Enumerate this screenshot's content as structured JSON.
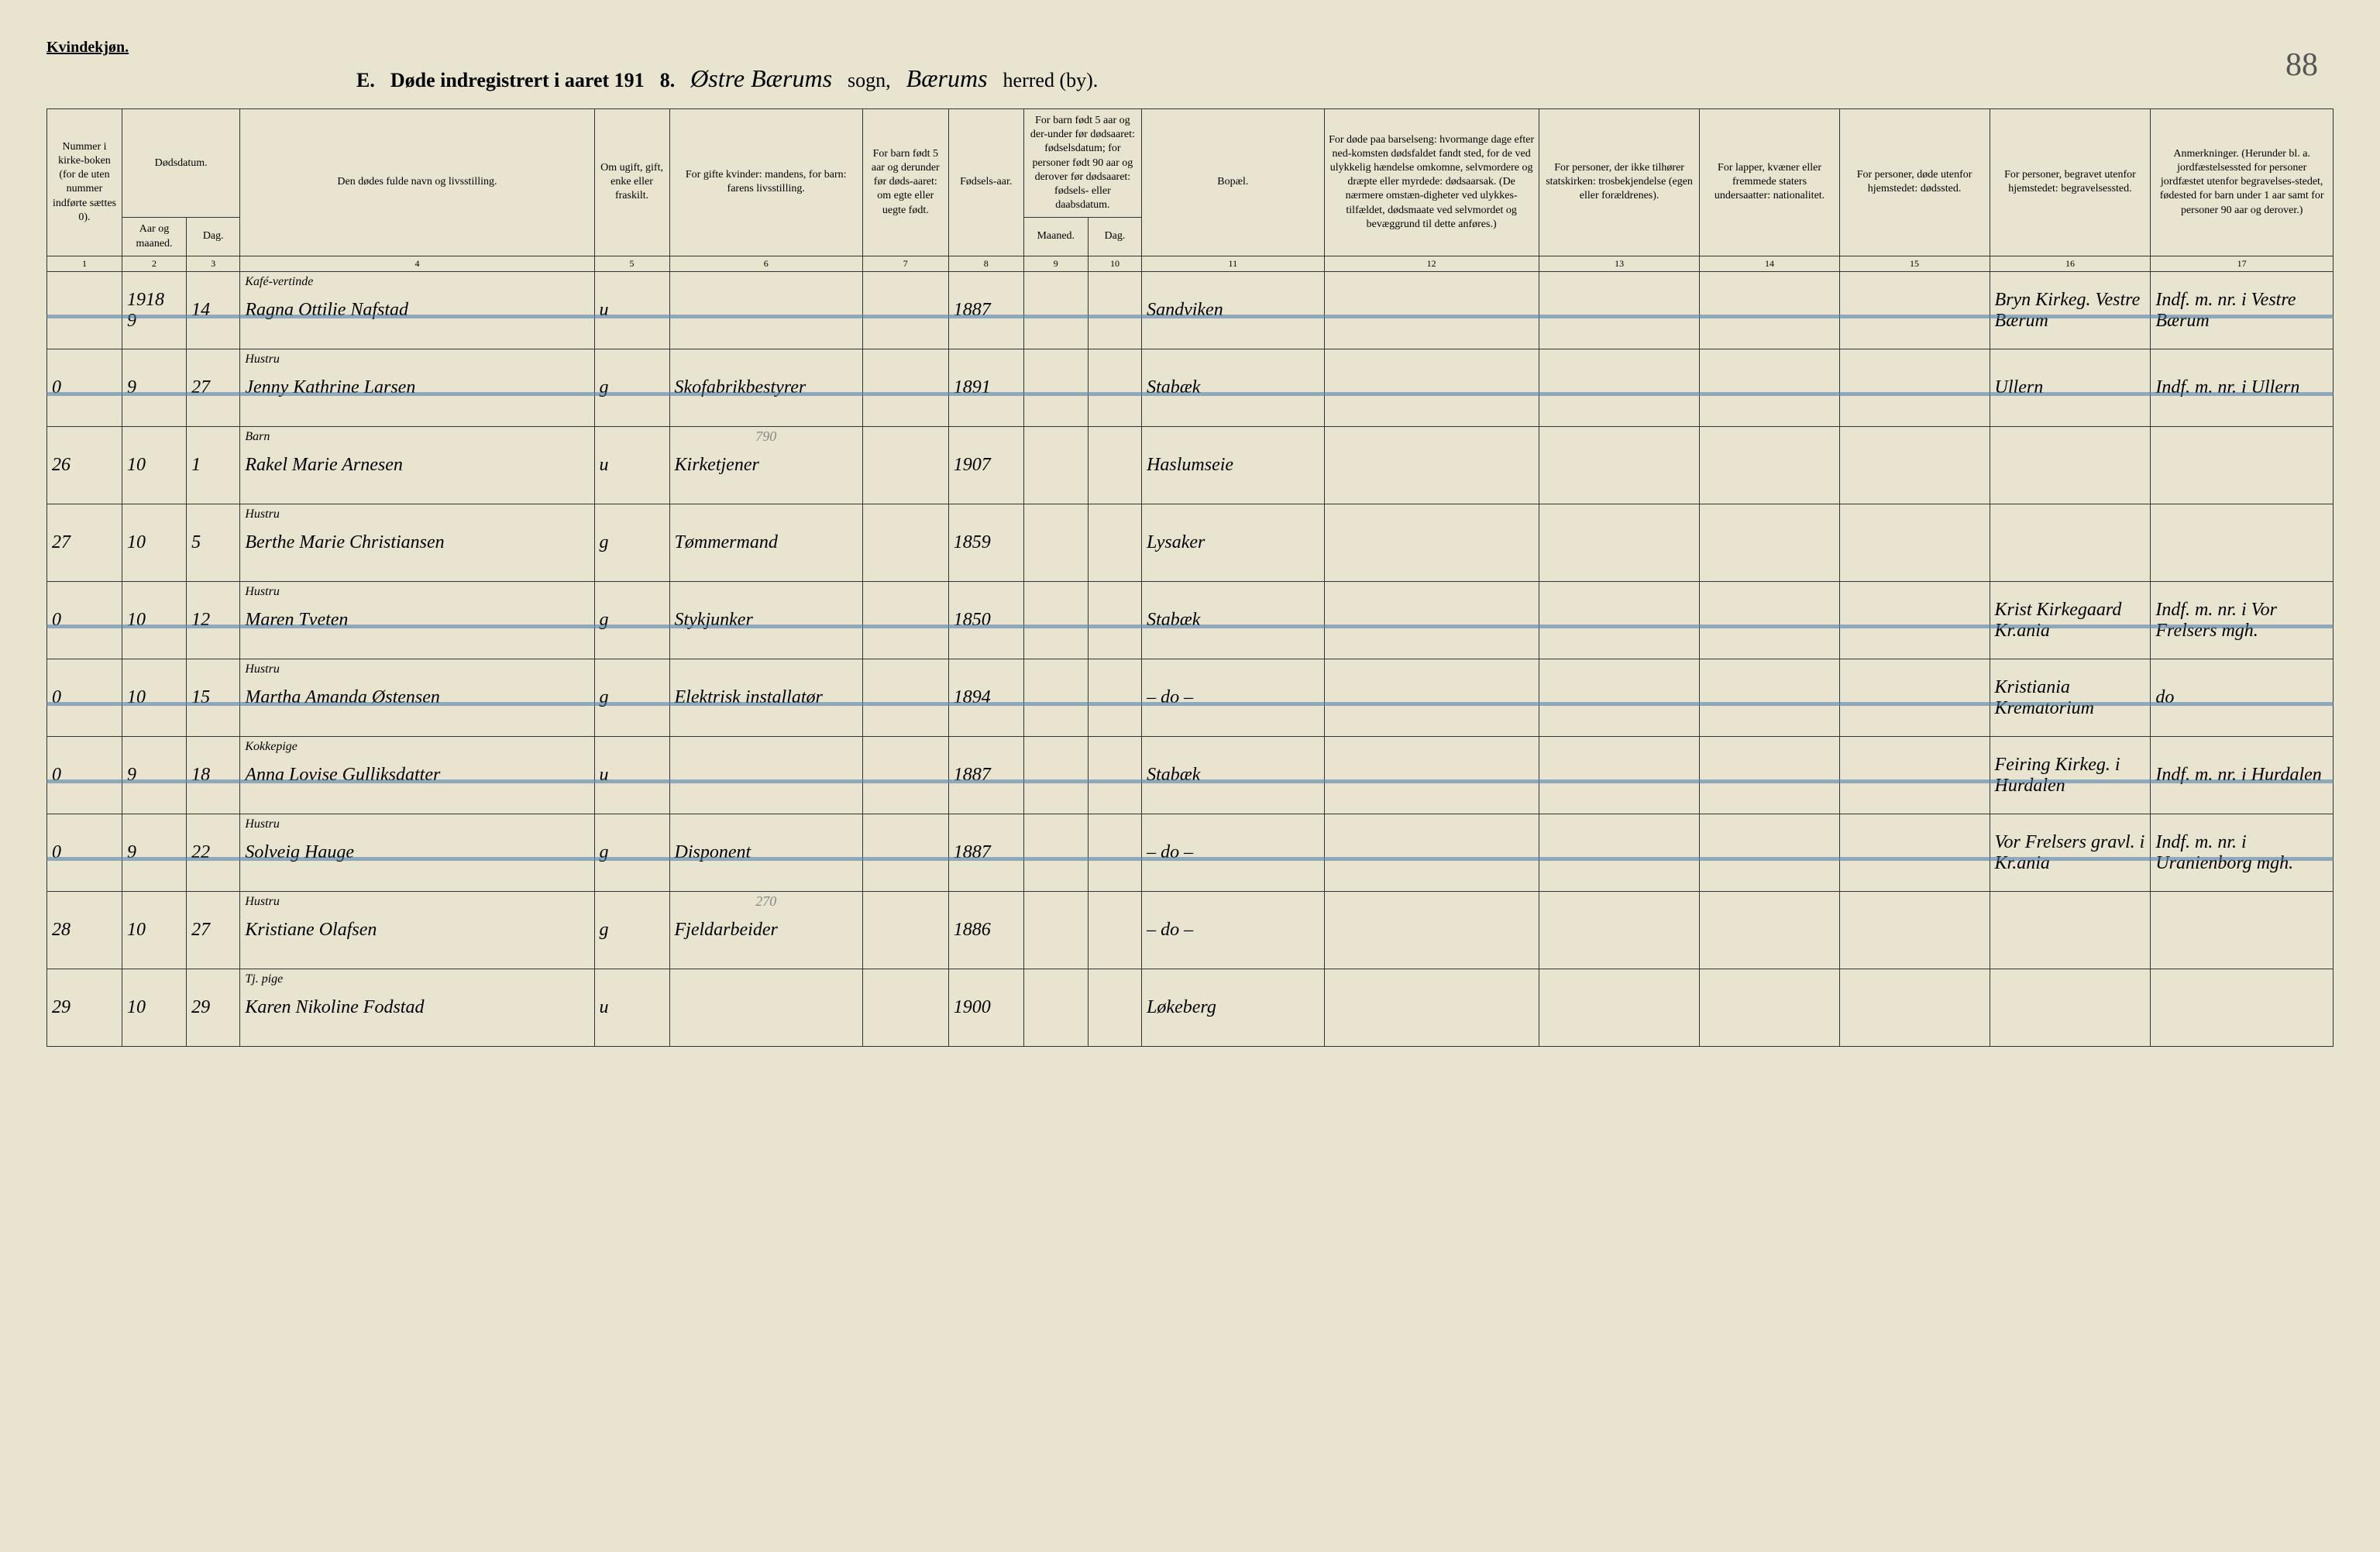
{
  "meta": {
    "genderLabel": "Kvindekjøn.",
    "sectionLetter": "E.",
    "titlePrefix": "Døde indregistrert i aaret 191",
    "yearSuffix": "8.",
    "parishScript": "Østre Bærums",
    "sognLabel": "sogn,",
    "herredScript": "Bærums",
    "herredLabel": "herred (by).",
    "pageNumber": "88"
  },
  "headers": {
    "c1": "Nummer i kirke-boken (for de uten nummer indførte sættes 0).",
    "c23top": "Dødsdatum.",
    "c2": "Aar og maaned.",
    "c3": "Dag.",
    "c4": "Den dødes fulde navn og livsstilling.",
    "c5": "Om ugift, gift, enke eller fraskilt.",
    "c6": "For gifte kvinder: mandens, for barn: farens livsstilling.",
    "c7": "For barn født 5 aar og derunder før døds-aaret: om egte eller uegte født.",
    "c8": "Fødsels-aar.",
    "c910top": "For barn født 5 aar og der-under før dødsaaret: fødselsdatum; for personer født 90 aar og derover før dødsaaret: fødsels- eller daabsdatum.",
    "c9": "Maaned.",
    "c10": "Dag.",
    "c11": "Bopæl.",
    "c12": "For døde paa barselseng: hvormange dage efter ned-komsten dødsfaldet fandt sted, for de ved ulykkelig hændelse omkomne, selvmordere og dræpte eller myrdede: dødsaarsak. (De nærmere omstæn-digheter ved ulykkes-tilfældet, dødsmaate ved selvmordet og bevæggrund til dette anføres.)",
    "c13": "For personer, der ikke tilhører statskirken: trosbekjendelse (egen eller forældrenes).",
    "c14": "For lapper, kvæner eller fremmede staters undersaatter: nationalitet.",
    "c15": "For personer, døde utenfor hjemstedet: dødssted.",
    "c16": "For personer, begravet utenfor hjemstedet: begravelsessted.",
    "c17": "Anmerkninger. (Herunder bl. a. jordfæstelsessted for personer jordfæstet utenfor begravelses-stedet, fødested for barn under 1 aar samt for personer 90 aar og derover.)"
  },
  "colnums": [
    "1",
    "2",
    "3",
    "4",
    "5",
    "6",
    "7",
    "8",
    "9",
    "10",
    "11",
    "12",
    "13",
    "14",
    "15",
    "16",
    "17"
  ],
  "rows": [
    {
      "struck": true,
      "n": "",
      "aar": "1918\n9",
      "dag": "14",
      "navn_sup": "Kafé-vertinde",
      "navn": "Ragna Ottilie Nafstad",
      "stat": "u",
      "livs": "",
      "egte": "",
      "faar": "1887",
      "fm": "",
      "fd": "",
      "bopael": "Sandviken",
      "c12": "",
      "c13": "",
      "c14": "",
      "c15": "",
      "c16": "Bryn Kirkeg. Vestre Bærum",
      "c17": "Indf. m. nr. i Vestre Bærum"
    },
    {
      "struck": true,
      "n": "0",
      "aar": "9",
      "dag": "27",
      "navn_sup": "Hustru",
      "navn": "Jenny Kathrine Larsen",
      "stat": "g",
      "livs": "Skofabrikbestyrer",
      "egte": "",
      "faar": "1891",
      "fm": "",
      "fd": "",
      "bopael": "Stabæk",
      "c12": "",
      "c13": "",
      "c14": "",
      "c15": "",
      "c16": "Ullern",
      "c17": "Indf. m. nr. i Ullern"
    },
    {
      "struck": false,
      "n": "26",
      "aar": "10",
      "dag": "1",
      "navn_sup": "Barn",
      "navn": "Rakel Marie Arnesen",
      "stat": "u",
      "livs": "Kirketjener",
      "pencil": "790",
      "egte": "",
      "faar": "1907",
      "fm": "",
      "fd": "",
      "bopael": "Haslumseie",
      "c12": "",
      "c13": "",
      "c14": "",
      "c15": "",
      "c16": "",
      "c17": ""
    },
    {
      "struck": false,
      "n": "27",
      "aar": "10",
      "dag": "5",
      "navn_sup": "Hustru",
      "navn": "Berthe Marie Christiansen",
      "stat": "g",
      "livs": "Tømmermand",
      "egte": "",
      "faar": "1859",
      "fm": "",
      "fd": "",
      "bopael": "Lysaker",
      "c12": "",
      "c13": "",
      "c14": "",
      "c15": "",
      "c16": "",
      "c17": ""
    },
    {
      "struck": true,
      "n": "0",
      "aar": "10",
      "dag": "12",
      "navn_sup": "Hustru",
      "navn": "Maren Tveten",
      "stat": "g",
      "livs": "Stykjunker",
      "egte": "",
      "faar": "1850",
      "fm": "",
      "fd": "",
      "bopael": "Stabæk",
      "c12": "",
      "c13": "",
      "c14": "",
      "c15": "",
      "c16": "Krist Kirkegaard Kr.ania",
      "c17": "Indf. m. nr. i Vor Frelsers mgh."
    },
    {
      "struck": true,
      "n": "0",
      "aar": "10",
      "dag": "15",
      "navn_sup": "Hustru",
      "navn": "Martha Amanda Østensen",
      "stat": "g",
      "livs": "Elektrisk installatør",
      "egte": "",
      "faar": "1894",
      "fm": "",
      "fd": "",
      "bopael": "– do –",
      "c12": "",
      "c13": "",
      "c14": "",
      "c15": "",
      "c16": "Kristiania Krematorium",
      "c17": "do"
    },
    {
      "struck": true,
      "n": "0",
      "aar": "9",
      "dag": "18",
      "navn_sup": "Kokkepige",
      "navn": "Anna Lovise Gulliksdatter",
      "stat": "u",
      "livs": "",
      "egte": "",
      "faar": "1887",
      "fm": "",
      "fd": "",
      "bopael": "Stabæk",
      "c12": "",
      "c13": "",
      "c14": "",
      "c15": "",
      "c16": "Feiring Kirkeg. i Hurdalen",
      "c17": "Indf. m. nr. i Hurdalen"
    },
    {
      "struck": true,
      "n": "0",
      "aar": "9",
      "dag": "22",
      "navn_sup": "Hustru",
      "navn": "Solveig Hauge",
      "stat": "g",
      "livs": "Disponent",
      "egte": "",
      "faar": "1887",
      "fm": "",
      "fd": "",
      "bopael": "– do –",
      "c12": "",
      "c13": "",
      "c14": "",
      "c15": "",
      "c16": "Vor Frelsers gravl. i Kr.ania",
      "c17": "Indf. m. nr. i Uranienborg mgh."
    },
    {
      "struck": false,
      "n": "28",
      "aar": "10",
      "dag": "27",
      "navn_sup": "Hustru",
      "navn": "Kristiane Olafsen",
      "stat": "g",
      "livs": "Fjeldarbeider",
      "pencil": "270",
      "egte": "",
      "faar": "1886",
      "fm": "",
      "fd": "",
      "bopael": "– do –",
      "c12": "",
      "c13": "",
      "c14": "",
      "c15": "",
      "c16": "",
      "c17": ""
    },
    {
      "struck": false,
      "n": "29",
      "aar": "10",
      "dag": "29",
      "navn_sup": "Tj. pige",
      "navn": "Karen Nikoline Fodstad",
      "stat": "u",
      "livs": "",
      "egte": "",
      "faar": "1900",
      "fm": "",
      "fd": "",
      "bopael": "Løkeberg",
      "c12": "",
      "c13": "",
      "c14": "",
      "c15": "",
      "c16": "",
      "c17": ""
    }
  ]
}
